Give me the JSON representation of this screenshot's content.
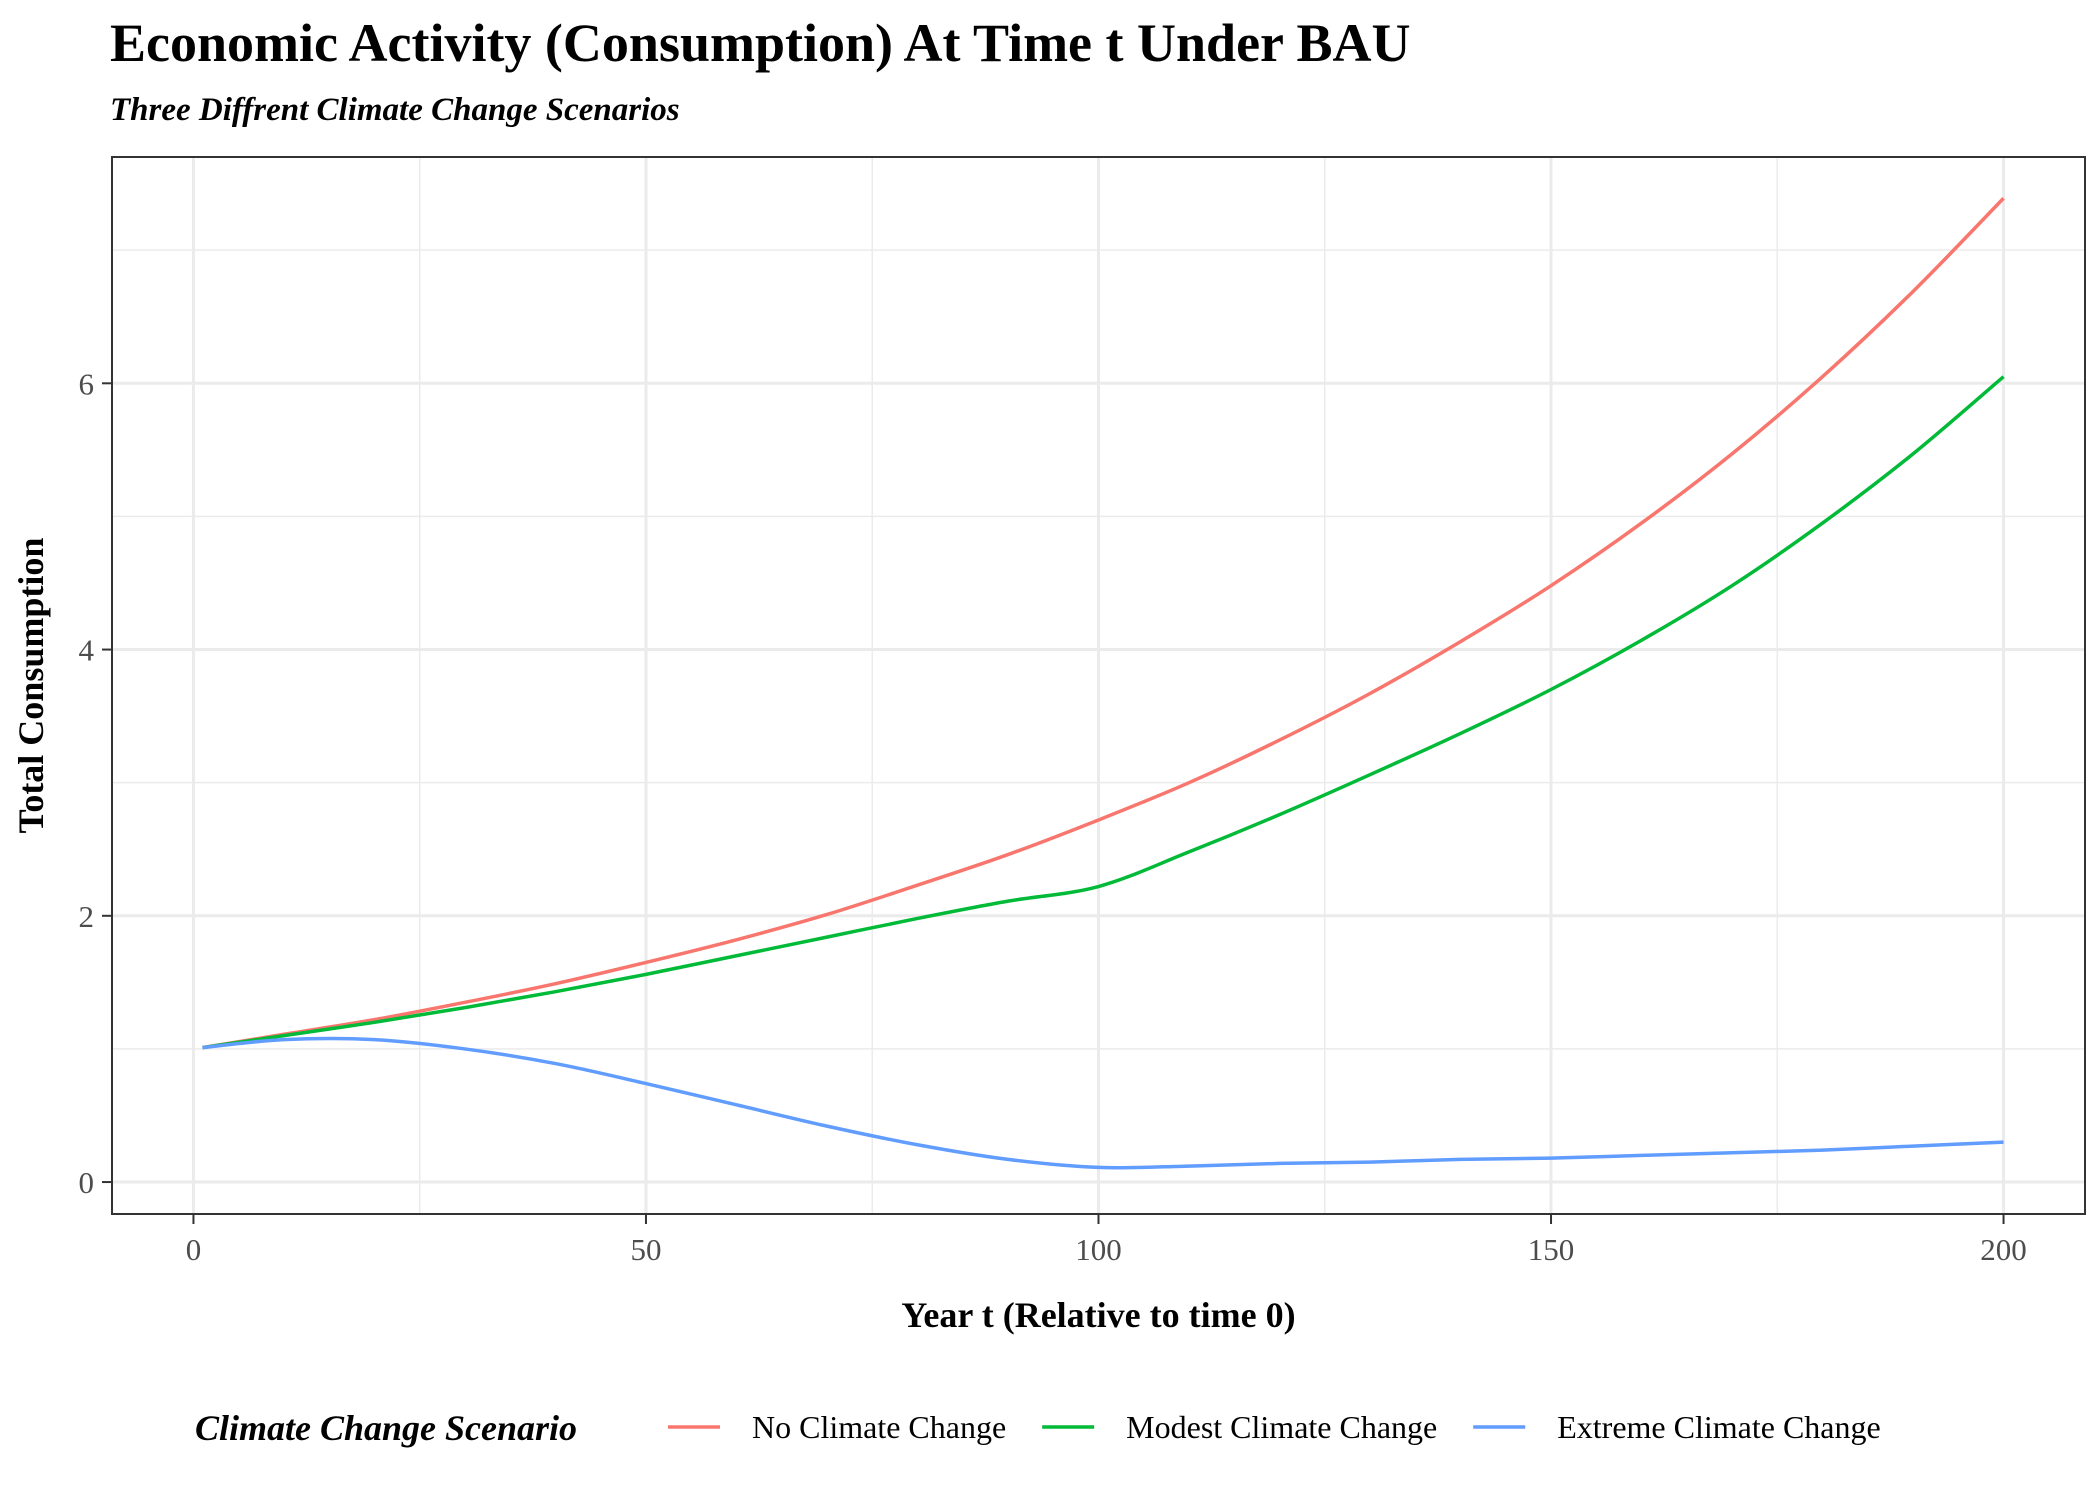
{
  "chart_data": {
    "type": "line",
    "title": "Economic Activity (Consumption) At Time t Under BAU",
    "subtitle": "Three Diffrent Climate Change Scenarios",
    "xlabel": "Year t (Relative to time 0)",
    "ylabel": "Total Consumption",
    "xlim": [
      -9,
      209
    ],
    "ylim": [
      -0.24,
      7.7
    ],
    "x_ticks": [
      0,
      50,
      100,
      150,
      200
    ],
    "x_tick_labels": [
      "0",
      "50",
      "100",
      "150",
      "200"
    ],
    "y_ticks": [
      0,
      2,
      4,
      6
    ],
    "y_tick_labels": [
      "0",
      "2",
      "4",
      "6"
    ],
    "grid": true,
    "legend": {
      "title": "Climate Change Scenario",
      "position": "bottom"
    },
    "colors": {
      "No Climate Change": "#F8766D",
      "Modest Climate Change": "#00BA38",
      "Extreme Climate Change": "#619CFF"
    },
    "x": [
      1,
      10,
      20,
      30,
      40,
      50,
      60,
      70,
      80,
      90,
      100,
      110,
      120,
      130,
      140,
      150,
      160,
      170,
      180,
      190,
      200
    ],
    "series": [
      {
        "name": "No Climate Change",
        "color": "#F8766D",
        "values": [
          1.01,
          1.11,
          1.22,
          1.35,
          1.49,
          1.65,
          1.82,
          2.01,
          2.23,
          2.46,
          2.72,
          3.0,
          3.32,
          3.67,
          4.06,
          4.48,
          4.95,
          5.47,
          6.05,
          6.69,
          7.39
        ]
      },
      {
        "name": "Modest Climate Change",
        "color": "#00BA38",
        "values": [
          1.01,
          1.1,
          1.2,
          1.31,
          1.43,
          1.56,
          1.7,
          1.84,
          1.98,
          2.11,
          2.22,
          2.48,
          2.76,
          3.06,
          3.37,
          3.7,
          4.07,
          4.48,
          4.95,
          5.47,
          6.05
        ]
      },
      {
        "name": "Extreme Climate Change",
        "color": "#619CFF",
        "values": [
          1.01,
          1.07,
          1.07,
          1.0,
          0.89,
          0.74,
          0.58,
          0.42,
          0.28,
          0.17,
          0.11,
          0.12,
          0.14,
          0.15,
          0.17,
          0.18,
          0.2,
          0.22,
          0.24,
          0.27,
          0.3
        ]
      }
    ]
  }
}
